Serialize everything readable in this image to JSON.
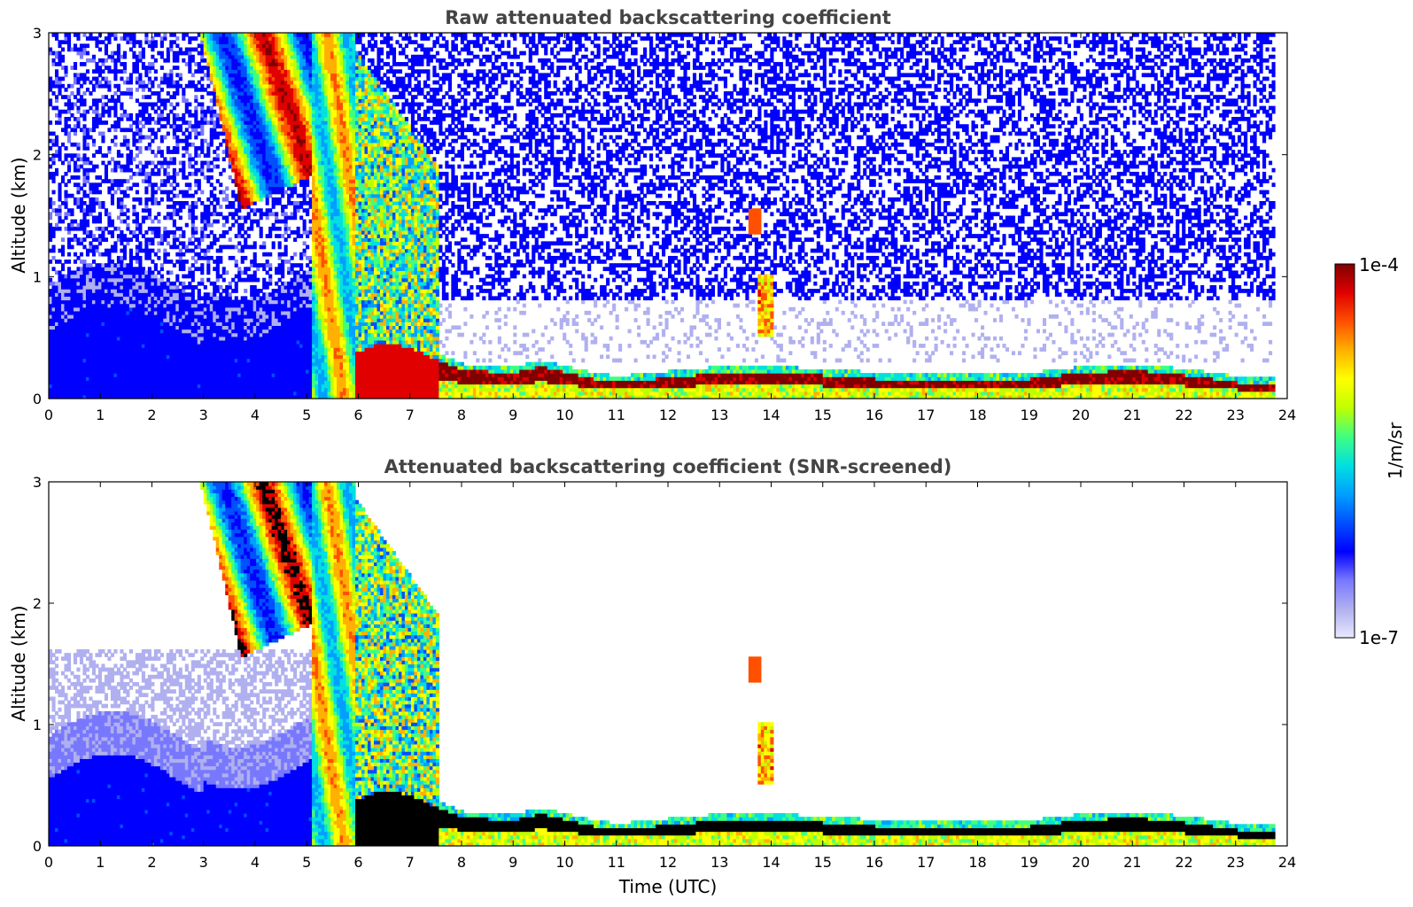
{
  "chart_data": [
    {
      "type": "heatmap",
      "title": "Raw attenuated backscattering coefficient",
      "xlabel": "",
      "ylabel": "Altitude (km)",
      "xlim": [
        0,
        24
      ],
      "ylim": [
        0,
        3
      ],
      "x_ticks": [
        "0",
        "1",
        "2",
        "3",
        "4",
        "5",
        "6",
        "7",
        "8",
        "9",
        "10",
        "11",
        "12",
        "13",
        "14",
        "15",
        "16",
        "17",
        "18",
        "19",
        "20",
        "21",
        "22",
        "23",
        "24"
      ],
      "y_ticks": [
        "0",
        "1",
        "2",
        "3"
      ],
      "data_end_time": 23.7,
      "boundary_layer_top_km": [
        {
          "t": 6.0,
          "h": 0.38
        },
        {
          "t": 6.5,
          "h": 0.45
        },
        {
          "t": 7.0,
          "h": 0.4
        },
        {
          "t": 7.5,
          "h": 0.3
        },
        {
          "t": 8.0,
          "h": 0.22
        },
        {
          "t": 9.0,
          "h": 0.2
        },
        {
          "t": 9.5,
          "h": 0.25
        },
        {
          "t": 10.0,
          "h": 0.2
        },
        {
          "t": 10.5,
          "h": 0.15
        },
        {
          "t": 11.0,
          "h": 0.12
        },
        {
          "t": 12.0,
          "h": 0.16
        },
        {
          "t": 13.0,
          "h": 0.2
        },
        {
          "t": 14.0,
          "h": 0.2
        },
        {
          "t": 15.0,
          "h": 0.18
        },
        {
          "t": 16.0,
          "h": 0.15
        },
        {
          "t": 17.0,
          "h": 0.13
        },
        {
          "t": 18.0,
          "h": 0.14
        },
        {
          "t": 19.0,
          "h": 0.15
        },
        {
          "t": 20.0,
          "h": 0.2
        },
        {
          "t": 21.0,
          "h": 0.22
        },
        {
          "t": 22.0,
          "h": 0.18
        },
        {
          "t": 23.0,
          "h": 0.12
        },
        {
          "t": 23.7,
          "h": 0.1
        }
      ],
      "cloud_features": [
        {
          "t0": 2.9,
          "t1": 5.1,
          "h0": 1.4,
          "h1": 3.0,
          "level": "high"
        },
        {
          "t0": 5.0,
          "t1": 5.9,
          "h0": 0.0,
          "h1": 3.0,
          "level": "high"
        },
        {
          "t0": 5.9,
          "t1": 7.4,
          "h0": 0.3,
          "h1": 2.8,
          "level": "medium"
        },
        {
          "t0": 13.6,
          "t1": 13.8,
          "h0": 1.35,
          "h1": 1.55,
          "level": "high"
        },
        {
          "t0": 13.7,
          "t1": 14.0,
          "h0": 0.5,
          "h1": 1.0,
          "level": "medium"
        }
      ]
    },
    {
      "type": "heatmap",
      "title": "Attenuated backscattering coefficient (SNR-screened)",
      "xlabel": "Time (UTC)",
      "ylabel": "Altitude (km)",
      "xlim": [
        0,
        24
      ],
      "ylim": [
        0,
        3
      ],
      "x_ticks": [
        "0",
        "1",
        "2",
        "3",
        "4",
        "5",
        "6",
        "7",
        "8",
        "9",
        "10",
        "11",
        "12",
        "13",
        "14",
        "15",
        "16",
        "17",
        "18",
        "19",
        "20",
        "21",
        "22",
        "23",
        "24"
      ],
      "y_ticks": [
        "0",
        "1",
        "2",
        "3"
      ],
      "data_end_time": 23.7
    }
  ],
  "colorbar": {
    "label": "1/m/sr",
    "max_label": "1e-4",
    "min_label": "1e-7",
    "colors": [
      "#e8e8ff",
      "#b0b0f0",
      "#7878ff",
      "#0000ff",
      "#0050ff",
      "#00a0ff",
      "#00e0e0",
      "#40ff80",
      "#c0ff00",
      "#ffff00",
      "#ffb000",
      "#ff5000",
      "#e00000",
      "#800000"
    ]
  }
}
